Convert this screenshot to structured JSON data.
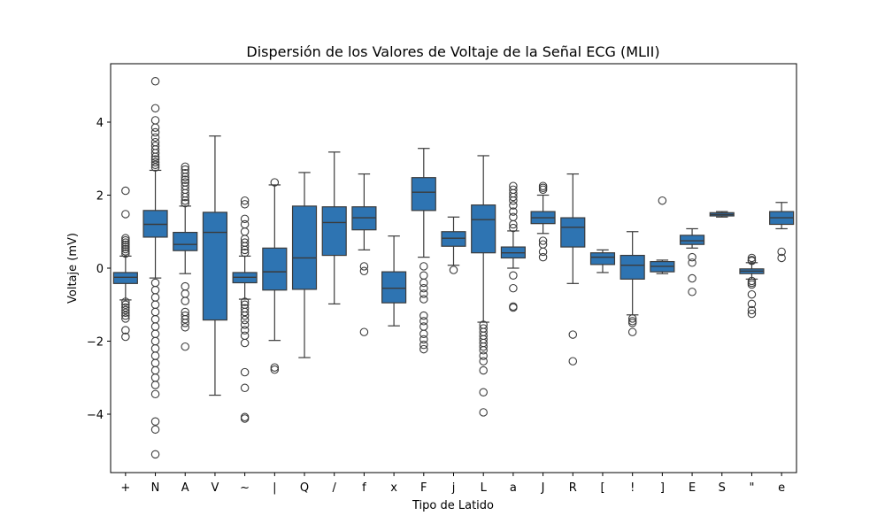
{
  "chart_data": {
    "type": "box",
    "title": "Dispersión de los Valores de Voltaje de la Señal ECG (MLII)",
    "xlabel": "Tipo de Latido",
    "ylabel": "Voltaje (mV)",
    "ylim": [
      -5.6,
      5.6
    ],
    "yticks": [
      -4,
      -2,
      0,
      2,
      4
    ],
    "grid": false,
    "colors": {
      "box": "#2e74b2",
      "line": "#3b3b3b",
      "frame": "#000000"
    },
    "boxes": [
      {
        "label": "+",
        "q1": -0.42,
        "median": -0.25,
        "q3": -0.12,
        "whisker_low": -0.87,
        "whisker_high": 0.33,
        "outliers": [
          2.12,
          1.48,
          0.82,
          0.76,
          0.7,
          0.64,
          0.58,
          0.52,
          0.46,
          0.4,
          -0.92,
          -1.0,
          -1.08,
          -1.15,
          -1.22,
          -1.3,
          -1.38,
          -1.7,
          -1.88
        ]
      },
      {
        "label": "N",
        "q1": 0.85,
        "median": 1.2,
        "q3": 1.58,
        "whisker_low": -0.27,
        "whisker_high": 2.68,
        "outliers": [
          5.12,
          4.38,
          4.05,
          3.85,
          3.72,
          3.58,
          3.45,
          3.35,
          3.25,
          3.15,
          3.05,
          2.98,
          2.9,
          2.83,
          2.76,
          -0.4,
          -0.6,
          -0.8,
          -1.0,
          -1.2,
          -1.4,
          -1.6,
          -1.8,
          -2.0,
          -2.2,
          -2.4,
          -2.6,
          -2.8,
          -3.0,
          -3.2,
          -3.45,
          -4.2,
          -4.42,
          -5.1
        ]
      },
      {
        "label": "A",
        "q1": 0.48,
        "median": 0.65,
        "q3": 0.98,
        "whisker_low": -0.15,
        "whisker_high": 1.7,
        "outliers": [
          2.78,
          2.7,
          2.6,
          2.5,
          2.42,
          2.35,
          2.25,
          2.15,
          2.05,
          1.95,
          1.85,
          1.78,
          -0.5,
          -0.7,
          -0.9,
          -1.2,
          -1.3,
          -1.4,
          -1.5,
          -1.62,
          -2.15
        ]
      },
      {
        "label": "V",
        "q1": -1.42,
        "median": 0.98,
        "q3": 1.53,
        "whisker_low": -3.48,
        "whisker_high": 3.62,
        "outliers": []
      },
      {
        "label": "~",
        "q1": -0.4,
        "median": -0.25,
        "q3": -0.12,
        "whisker_low": -0.85,
        "whisker_high": 0.33,
        "outliers": [
          1.85,
          1.75,
          1.35,
          1.2,
          1.0,
          0.8,
          0.7,
          0.6,
          0.5,
          0.42,
          -0.92,
          -1.0,
          -1.1,
          -1.2,
          -1.3,
          -1.42,
          -1.55,
          -1.7,
          -1.85,
          -2.05,
          -2.85,
          -3.28,
          -4.08,
          -4.12
        ]
      },
      {
        "label": "|",
        "q1": -0.6,
        "median": -0.1,
        "q3": 0.55,
        "whisker_low": -1.98,
        "whisker_high": 2.28,
        "outliers": [
          2.35,
          -2.72,
          -2.78
        ]
      },
      {
        "label": "Q",
        "q1": -0.58,
        "median": 0.28,
        "q3": 1.7,
        "whisker_low": -2.45,
        "whisker_high": 2.62,
        "outliers": []
      },
      {
        "label": "/",
        "q1": 0.35,
        "median": 1.25,
        "q3": 1.68,
        "whisker_low": -0.98,
        "whisker_high": 3.18,
        "outliers": []
      },
      {
        "label": "f",
        "q1": 1.05,
        "median": 1.38,
        "q3": 1.68,
        "whisker_low": 0.5,
        "whisker_high": 2.58,
        "outliers": [
          0.05,
          -0.08,
          -1.75
        ]
      },
      {
        "label": "x",
        "q1": -0.95,
        "median": -0.55,
        "q3": -0.1,
        "whisker_low": -1.58,
        "whisker_high": 0.88,
        "outliers": []
      },
      {
        "label": "F",
        "q1": 1.58,
        "median": 2.08,
        "q3": 2.48,
        "whisker_low": 0.3,
        "whisker_high": 3.28,
        "outliers": [
          0.05,
          -0.2,
          -0.4,
          -0.55,
          -0.7,
          -0.85,
          -1.3,
          -1.45,
          -1.6,
          -1.8,
          -1.95,
          -2.1,
          -2.22
        ]
      },
      {
        "label": "j",
        "q1": 0.6,
        "median": 0.82,
        "q3": 1.0,
        "whisker_low": 0.08,
        "whisker_high": 1.4,
        "outliers": [
          -0.05
        ]
      },
      {
        "label": "L",
        "q1": 0.42,
        "median": 1.33,
        "q3": 1.73,
        "whisker_low": -1.48,
        "whisker_high": 3.08,
        "outliers": [
          -1.55,
          -1.65,
          -1.75,
          -1.85,
          -1.95,
          -2.05,
          -2.15,
          -2.25,
          -2.4,
          -2.55,
          -2.8,
          -3.4,
          -3.95
        ]
      },
      {
        "label": "a",
        "q1": 0.28,
        "median": 0.42,
        "q3": 0.58,
        "whisker_low": 0.0,
        "whisker_high": 1.02,
        "outliers": [
          2.25,
          2.15,
          2.05,
          1.95,
          1.85,
          1.72,
          1.55,
          1.4,
          1.2,
          1.1,
          -0.2,
          -0.55,
          -1.05,
          -1.08
        ]
      },
      {
        "label": "J",
        "q1": 1.22,
        "median": 1.38,
        "q3": 1.55,
        "whisker_low": 0.95,
        "whisker_high": 2.0,
        "outliers": [
          2.25,
          2.2,
          2.15,
          0.75,
          0.65,
          0.45,
          0.3
        ]
      },
      {
        "label": "R",
        "q1": 0.58,
        "median": 1.12,
        "q3": 1.38,
        "whisker_low": -0.42,
        "whisker_high": 2.58,
        "outliers": [
          -1.82,
          -2.55
        ]
      },
      {
        "label": "[",
        "q1": 0.1,
        "median": 0.3,
        "q3": 0.42,
        "whisker_low": -0.12,
        "whisker_high": 0.5,
        "outliers": []
      },
      {
        "label": "!",
        "q1": -0.3,
        "median": 0.08,
        "q3": 0.35,
        "whisker_low": -1.28,
        "whisker_high": 1.0,
        "outliers": [
          -1.38,
          -1.45,
          -1.5,
          -1.75
        ]
      },
      {
        "label": "]",
        "q1": -0.1,
        "median": 0.05,
        "q3": 0.18,
        "whisker_low": -0.15,
        "whisker_high": 0.22,
        "outliers": [
          1.85
        ]
      },
      {
        "label": "E",
        "q1": 0.65,
        "median": 0.75,
        "q3": 0.9,
        "whisker_low": 0.55,
        "whisker_high": 1.08,
        "outliers": [
          0.3,
          0.15,
          -0.28,
          -0.65
        ]
      },
      {
        "label": "S",
        "q1": 1.43,
        "median": 1.47,
        "q3": 1.52,
        "whisker_low": 1.4,
        "whisker_high": 1.55,
        "outliers": []
      },
      {
        "label": "\"",
        "q1": -0.15,
        "median": -0.08,
        "q3": -0.02,
        "whisker_low": -0.3,
        "whisker_high": 0.15,
        "outliers": [
          0.28,
          0.22,
          0.2,
          -0.35,
          -0.4,
          -0.45,
          -0.72,
          -0.98,
          -1.15,
          -1.25
        ]
      },
      {
        "label": "e",
        "q1": 1.2,
        "median": 1.38,
        "q3": 1.55,
        "whisker_low": 1.08,
        "whisker_high": 1.8,
        "outliers": [
          0.45,
          0.28
        ]
      }
    ]
  }
}
